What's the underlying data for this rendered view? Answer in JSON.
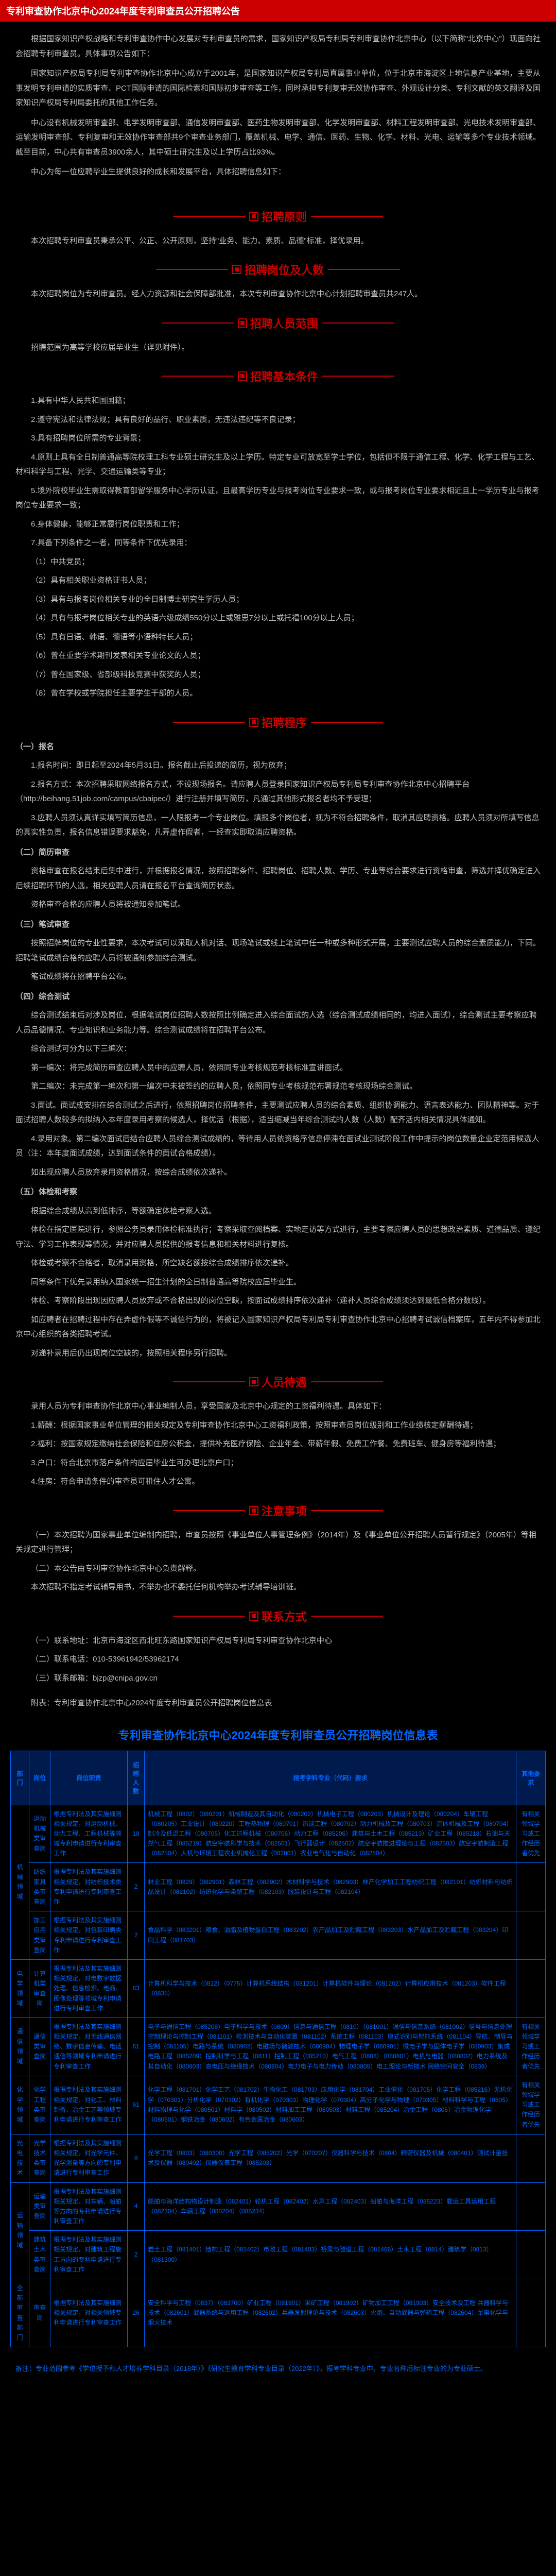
{
  "header": "专利审查协作北京中心2024年度专利审查员公开招聘公告",
  "intro": [
    "根据国家知识产权战略和专利审查协作中心发展对专利审查员的需求，国家知识产权局专利局专利审查协作北京中心（以下简称\"北京中心\"）现面向社会招聘专利审查员。具体事项公告如下：",
    "国家知识产权局专利局专利审查协作北京中心成立于2001年，是国家知识产权局专利局直属事业单位，位于北京市海淀区上地信息产业基地，主要从事发明专利申请的实质审查、PCT国际申请的国际检索和国际初步审查等工作，同时承担专利复审无效协作审查、外观设计分类、专利文献的英文翻译及国家知识产权局专利局委托的其他工作任务。",
    "中心设有机械发明审查部、电学发明审查部、通信发明审查部、医药生物发明审查部、化学发明审查部、材料工程发明审查部、光电技术发明审查部、运输发明审查部、专利复审和无效协作审查部共9个审查业务部门，覆盖机械、电学、通信、医药、生物、化学、材料、光电、运输等多个专业技术领域。截至目前，中心共有审查员3900余人，其中硕士研究生及以上学历占比93%。",
    "中心为每一位应聘毕业生提供良好的成长和发展平台，具体招聘信息如下："
  ],
  "s1": {
    "title": "招聘原则",
    "body": "本次招聘专利审查员秉承公平、公正、公开原则，坚持\"业务、能力、素质、品德\"标准，择优录用。"
  },
  "s2": {
    "title": "招聘岗位及人数",
    "body": "本次招聘岗位为专利审查员。经人力资源和社会保障部批准，本次专利审查协作北京中心计划招聘审查员共247人。"
  },
  "s3": {
    "title": "招聘人员范围",
    "body": "招聘范围为高等学校应届毕业生（详见附件）。",
    "link": "详见附件"
  },
  "s4": {
    "title": "招聘基本条件",
    "items": [
      "1.具有中华人民共和国国籍；",
      "2.遵守宪法和法律法规；具有良好的品行、职业素质，无违法违纪等不良记录；",
      "3.具有招聘岗位所需的专业背景；",
      "4.原则上具有全日制普通高等院校理工科专业硕士研究生及以上学历。特定专业可放宽至学士学位，包括但不限于通信工程、化学、化学工程与工艺、材料科学与工程、光学、交通运输类等专业；",
      "5.境外院校毕业生需取得教育部留学服务中心学历认证，且最高学历专业与报考岗位专业要求一致，或与报考岗位专业要求相近且上一学历专业与报考岗位专业要求一致；",
      "6.身体健康，能够正常履行岗位职责和工作；",
      "7.具备下列条件之一者，同等条件下优先录用：",
      "（1）中共党员；",
      "（2）具有相关职业资格证书人员；",
      "（3）具有与报考岗位相关专业的全日制博士研究生学历人员；",
      "（4）具有与报考岗位相关专业的英语六级成绩550分以上或雅思7分以上或托福100分以上人员；",
      "（5）具有日语、韩语、德语等小语种特长人员；",
      "（6）曾在重要学术期刊发表相关专业论文的人员；",
      "（7）曾在国家级、省部级科技竞赛中获奖的人员；",
      "（8）曾在学校或学院担任主要学生干部的人员。"
    ]
  },
  "s5": {
    "title": "招聘程序",
    "parts": [
      {
        "h": "（一）报名",
        "body": [
          "1.报名时间：即日起至2024年5月31日。报名截止后投递的简历，视为放弃；",
          "2.报名方式：本次招聘采取网络报名方式，不设现场报名。请应聘人员登录国家知识产权局专利局专利审查协作北京中心招聘平台（http://beihang.51job.com/campus/cbaipec/）进行注册并填写简历，凡通过其他形式报名者均不予受理；",
          "3.应聘人员须认真详实填写简历信息，一人限报考一个专业岗位。填报多个岗位者，视为不符合招聘条件，取消其应聘资格。应聘人员须对所填写信息的真实性负责，报名信息错误要求豁免，凡弄虚作假者，一经查实即取消应聘资格。"
        ]
      },
      {
        "h": "（二）简历审查",
        "body": [
          "资格审查在报名结束后集中进行，并根据报名情况，按照招聘条件、招聘岗位、招聘人数、学历、专业等综合要求进行资格审查，筛选并择优确定进入后续招聘环节的人选，相关应聘人员请在报名平台查询简历状态。",
          "资格审查合格的应聘人员将被通知参加笔试。"
        ]
      },
      {
        "h": "（三）笔试审查",
        "body": [
          "按照招牌岗位的专业性要求，本次考试可以采取人机对话、现场笔试或线上笔试中任一种或多种形式开展，主要测试应聘人员的综合素质能力，下同。招聘笔试成绩合格的应聘人员将被通知参加综合测试。",
          "笔试成绩将在招聘平台公布。"
        ]
      },
      {
        "h": "（四）综合测试",
        "body": [
          "综合测试结束后对涉及岗位，根据笔试岗位招聘人数按照比例确定进入综合面试的人选（综合测试成绩相同的，均进入面试），综合测试主要考察应聘人员品德情况、专业知识和业务能力等。综合测试成绩将在招聘平台公布。",
          "综合测试可分为以下三编次：",
          "第一编次：将完成简历审查应聘人员中的应聘人员，依照同专业考核规范考核标准宣讲面试。",
          "第二编次：未完成第一编次和第一编次中未被签约的应聘人员，依照同专业考核规范布署规范考核现场综合测试。",
          "3.面试。面试成安排在综合测试之后进行，依照招聘岗位招聘条件，主要测试应聘人员的综合素质、组织协调能力、语言表达能力、团队精神等。对于面试招聘人数较多的拟纳入本年度录用考察的候选人，择优活（根据），适当缩减当年综合测试的人数（人数）配齐活内相关情况具体通知。",
          "4.录用对象。第二编次面试后结合应聘人员综合测试成绩的，等待用人员依资格序信息停滞在面试业测试阶段工作中提示的岗位数量企业定范用候选人员（注：本年度面试成绩，达到面试条件的面试合格成绩）。",
          "如出现应聘人员放弃录用资格情况，按综合成绩依次递补。"
        ]
      },
      {
        "h": "（五）体检和考察",
        "body": [
          "根据综合成绩从高到低排序，等额确定体检考察人选。",
          "体检在指定医院进行，参照公务员录用体检标准执行；考察采取查阅档案、实地走访等方式进行，主要考察应聘人员的思想政治素质、道德品质、遵纪守法、学习工作表现等情况，并对应聘人员提供的报考信息和相关材料进行复核。",
          "体检或考察不合格者，取消录用资格，所空缺名额按综合成绩排序依次递补。",
          "同等条件下优先录用纳入国家统一招生计划的全日制普通高等院校应届毕业生。",
          "体检、考察阶段出现因应聘人员放弃或不合格出现的岗位空缺，按面试成绩排序依次递补（递补人员综合成绩须达到最低合格分数线）。",
          "如应聘者在招聘过程中存在弄虚作假等不诚信行为的，将被记入国家知识产权局专利局专利审查协作北京中心招聘考试诚信档案库，五年内不得参加北京中心组织的各类招聘考试。",
          "对递补录用后仍出现岗位空缺的，按照相关程序另行招聘。"
        ]
      }
    ]
  },
  "s6": {
    "title": "人员待遇",
    "body": [
      "录用人员为专利审查协作北京中心事业编制人员，享受国家及北京中心规定的工资福利待遇。具体如下：",
      "1.薪酬：根据国家事业单位管理的相关规定及专利审查协作北京中心工资福利政策，按照审查员岗位级别和工作业绩核定薪酬待遇；",
      "2.福利：按国家规定缴纳社会保险和住房公积金，提供补充医疗保险、企业年金、带薪年假、免费工作餐、免费班车、健身房等福利待遇；",
      "3.户口：符合北京市落户条件的应届毕业生可办理北京户口；",
      "4.住房：符合申请条件的审查员可租住人才公寓。"
    ]
  },
  "s7": {
    "title": "注意事项",
    "body": [
      "（一）本次招聘为国家事业单位编制内招聘，审查员按照《事业单位人事管理条例》（2014年）及《事业单位公开招聘人员暂行规定》（2005年）等相关规定进行管理；",
      "（二）本公告由专利审查协作北京中心负责解释。",
      "本次招聘不指定考试辅导用书，不举办也不委托任何机构举办考试辅导培训班。"
    ]
  },
  "s8": {
    "title": "联系方式",
    "body": [
      "（一）联系地址：北京市海淀区西北旺东路国家知识产权局专利局专利审查协作北京中心",
      "（二）联系电话：010-53961942/53962174",
      "（三）联系邮箱：bjzp@cnipa.gov.cn"
    ],
    "footer": "附表：专利审查协作北京中心2024年度专利审查员公开招聘岗位信息表"
  },
  "tableTitle": "专利审查协作北京中心2024年度专利审查员公开招聘岗位信息表",
  "tableHeaders": [
    "部门",
    "岗位",
    "岗位职责",
    "招聘人数",
    "报考学科专业（代码）要求",
    "其他要求"
  ],
  "tableRows": [
    {
      "dept": "机械领域",
      "deptRows": 3,
      "post": "运动机械类审查岗",
      "duty": "根据专利法及其实施细则相关规定，对运动机械、动力工程、工程机械等领域专利申请进行专利审查工作",
      "num": "18",
      "major": "机械工程（0802）（080201）机械制造及其自动化（080202）机械电子工程（080203）机械设计及理论（080204）车辆工程（080205）工业设计（080220）工程热物理（080701）热能工程（080702）动力机械及工程（080703）流体机械及工程（080704）制冷及低温工程（080705）化工过程机械（080706）动力工程（085206）建筑与土木工程（085213）矿业工程（085218）石油与天然气工程（085219）航空宇航科学与技术（082501）飞行器设计（082502）航空宇航推进理论与工程（082503）航空宇航制造工程（082504）人机与环境工程农业机械化工程（082801）农业电气化与自动化（082804）",
      "other": "有相关领域学习或工作经历者优先"
    },
    {
      "post": "纺织家具类审查岗",
      "duty": "根据专利法及其实施细则相关规定，对纺织技术类专利申请进行专利审查工作",
      "num": "2",
      "major": "林业工程（0829）（082901）森林工程（082902）木材科学与技术（082903）林产化学加工工程纺织工程（082101）纺织材料与纺织品设计（082102）纺织化学与染整工程（082103）服装设计与工程（082104）",
      "other": ""
    },
    {
      "post": "加工应用类审查岗",
      "duty": "根据专利法及其实施细则相关规定，对包装印刷类专利申请进行专利审查工作",
      "num": "2",
      "major": "食品科学（083201）粮食、油脂及植物蛋白工程（083202）农产品加工及贮藏工程（083203）水产品加工及贮藏工程（083204）印刷工程（081703）",
      "other": ""
    },
    {
      "dept": "电学领域",
      "deptRows": 1,
      "post": "计算机类审查岗",
      "duty": "根据专利法及其实施细则相关规定，对电数字数据处理、信息检索、电商、图像处理等领域专利申请进行专利审查工作",
      "num": "63",
      "major": "计算机科学与技术（0812）（0775）计算机系统结构（081201）计算机软件与理论（081202）计算机应用技术（081203）软件工程（0835）",
      "other": ""
    },
    {
      "dept": "通信领域",
      "deptRows": 1,
      "post": "通信类审查岗",
      "duty": "根据专利法及其实施细则相关规定，对无线通信网络、数字信息传输、电话通信等领域专利申请进行专利审查工作",
      "num": "61",
      "major": "电子与通信工程（085208）电子科学与技术（0809）信息与通信工程（0810）（081001）通信与信息系统（081002）信号与信息处理 控制理论与控制工程（081101）检测技术与自动化装置（081102）系统工程（081103）模式识别与智能系统（081104）导航、制导与控制（081105）电路与系统（080902）电磁场与微波技术（080904）物理电子学（080901）微电子学与固体电子学（080903）集成电路工程（085209）控制科学与工程（0811）控制工程（085210）电气工程（0808）（080801）电机与电器（080802）电力系统及其自动化（080803）高电压与绝缘技术（080804）电力电子与电力传动（080805）电工理论与新技术 网络空间安全（0839）",
      "other": "有相关领域学习或工作经历者优先"
    },
    {
      "dept": "化学领域",
      "deptRows": 1,
      "post": "化学工程类审查岗",
      "duty": "根据专利法及其实施细则相关规定，对化工、材料制备、冶金工艺等领域专利申请进行专利审查工作",
      "num": "61",
      "major": "化学工程（081701）化学工艺（081702）生物化工（081703）应用化学（081704）工业催化（081705）化学工程（085216）无机化学（070301）分析化学（070302）有机化学（070303）物理化学（070304）高分子化学与物理（070305）材料科学与工程（0805）材料物理与化学（080501）材料学（080502）材料加工工程（080503）材料工程（085204）冶金工程（0806）冶金物理化学（080601）钢铁冶金（080602）有色金属冶金（080603）",
      "other": "有相关领域学习或工作经历者优先"
    },
    {
      "dept": "光电技术",
      "deptRows": 1,
      "post": "光学技术类审查岗",
      "duty": "根据专利法及其实施细则相关规定，对光学元件、光学测量等方向的专利申请进行专利审查工作",
      "num": "8",
      "major": "光学工程（0803）（080300）光学工程（085202）光学（070207）仪器科学与技术（0804）精密仪器及机械（080401）测试计量技术及仪器（080402）仪器仪表工程（085203）",
      "other": ""
    },
    {
      "dept": "运输领域",
      "deptRows": 2,
      "post": "运输类审查岗",
      "duty": "根据专利法及其实施细则相关规定，对车辆、船舶等方向的专利申请进行专利审查工作",
      "num": "4",
      "major": "船舶与海洋结构物设计制造（082401）轮机工程（082402）水声工程（082403）船舶与海洋工程（085223）载运工具运用工程（082304）车辆工程（080204）（085234）",
      "other": ""
    },
    {
      "post": "建筑土木类审查岗",
      "duty": "根据专利法及其实施细则相关规定，对建筑工程施工方向的专利申请进行专利审查工作",
      "num": "2",
      "major": "岩土工程（081401）结构工程（081402）市政工程（081403）桥梁与隧道工程（081406）土木工程（0814）建筑学（0813）（081300）",
      "other": ""
    },
    {
      "dept": "全部审查部门",
      "deptRows": 1,
      "post": "审查岗",
      "duty": "根据专利法及其实施细则相关规定，对相关领域专利申请进行专利审查工作",
      "num": "26",
      "major": "安全科学与工程（0837）（083700）矿业工程（081901）采矿工程（081902）矿物加工工程（081903）安全技术及工程 兵器科学与技术（082601）武器系统与运用工程（082602）兵器发射理论与技术（082603）火炮、自动武器与弹药工程（082604）军事化学与烟火技术",
      "other": ""
    }
  ],
  "tableFootnote": "备注：专业范围参考《学位授予和人才培养学科目录（2018年）》《研究生教育学科专业目录（2022年）》，报考学科专业中，专业名称后标注专业的为专业硕士。"
}
